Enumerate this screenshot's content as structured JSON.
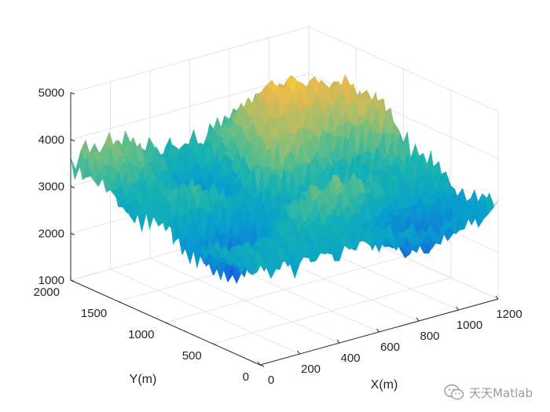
{
  "chart_data": {
    "type": "surface",
    "title": "",
    "xlabel": "X(m)",
    "ylabel": "Y(m)",
    "zlabel": "",
    "xlim": [
      0,
      1200
    ],
    "ylim": [
      0,
      2000
    ],
    "zlim": [
      1000,
      5000
    ],
    "x_ticks": [
      "0",
      "200",
      "400",
      "600",
      "800",
      "1000",
      "1200"
    ],
    "y_ticks": [
      "0",
      "500",
      "1000",
      "1500",
      "2000"
    ],
    "z_ticks": [
      "1000",
      "2000",
      "3000",
      "4000",
      "5000"
    ],
    "grid": true,
    "colormap": "parula",
    "z_range_shown": [
      1700,
      4800
    ]
  },
  "watermark": {
    "icon": "wechat-icon",
    "text": "天天Matlab"
  },
  "colors": {
    "axis": "#262626",
    "grid": "#dedede"
  }
}
